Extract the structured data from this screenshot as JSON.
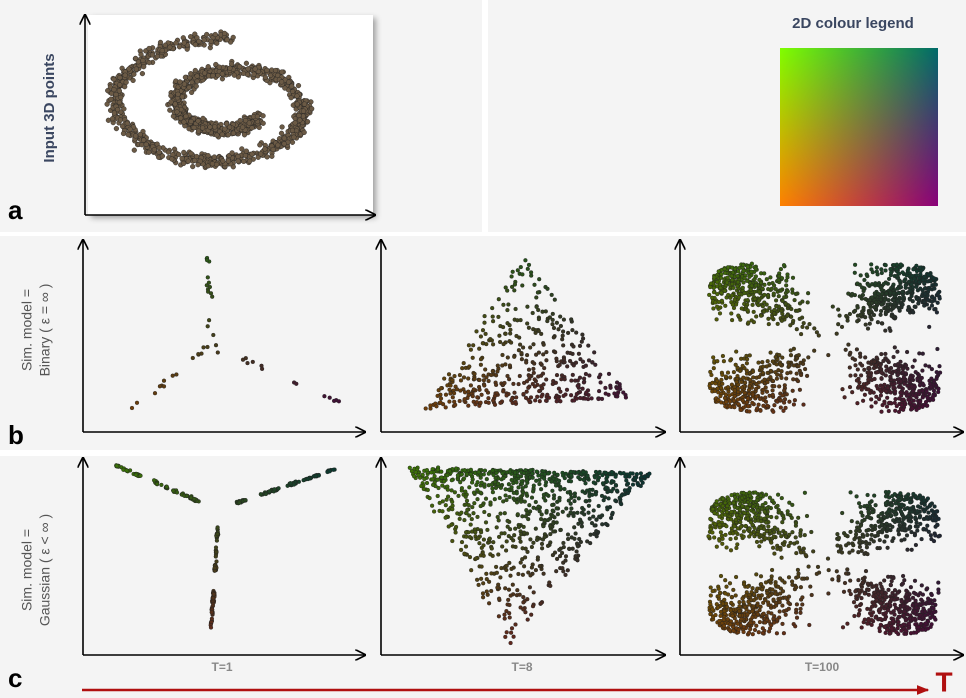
{
  "panel_a": {
    "label": "a",
    "axis_label": "Input 3D points"
  },
  "legend": {
    "title": "2D colour legend"
  },
  "panel_b": {
    "label": "b",
    "row_label": [
      "Sim. model =",
      "Binary ( ε = ∞ )"
    ]
  },
  "panel_c": {
    "label": "c",
    "row_label": [
      "Sim. model =",
      "Gaussian ( ε < ∞ )"
    ]
  },
  "time_labels": [
    "T=1",
    "T=8",
    "T=100"
  ],
  "time_axis": "T"
}
